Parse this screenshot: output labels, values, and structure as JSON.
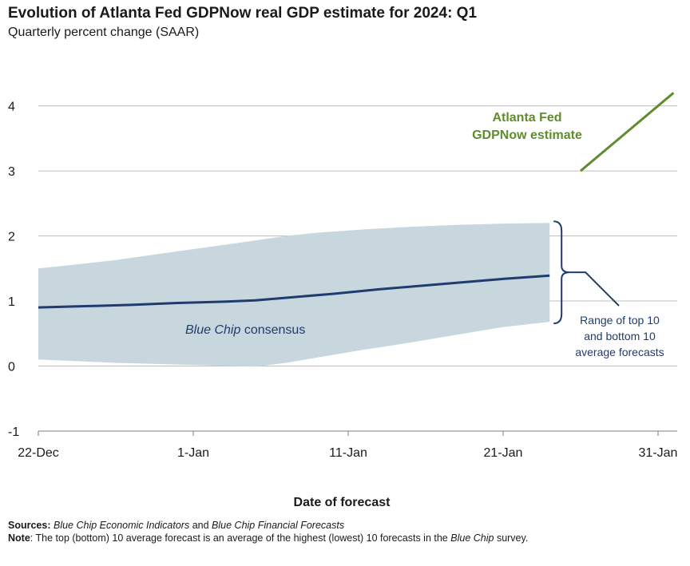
{
  "title": "Evolution of Atlanta Fed GDPNow real GDP estimate for 2024: Q1",
  "subtitle": "Quarterly percent change (SAAR)",
  "sources": {
    "label": "Sources:",
    "italic1": "Blue Chip Economic Indicators",
    "mid": "and",
    "italic2": "Blue Chip Financial Forecasts"
  },
  "note": {
    "label": "Note",
    "text1": ": The top (bottom) 10 average forecast is an average of the highest (lowest) 10 forecasts in the",
    "italic": "Blue Chip",
    "text2": "survey."
  },
  "chart_data": {
    "type": "area",
    "xlabel": "Date of forecast",
    "ylabel": "",
    "ylim": [
      -1,
      4.4
    ],
    "yticks": [
      "-1",
      "0",
      "1",
      "2",
      "3",
      "4"
    ],
    "xticks": [
      "22-Dec",
      "1-Jan",
      "11-Jan",
      "21-Jan",
      "31-Jan"
    ],
    "xtick_days": [
      0,
      10,
      20,
      30,
      40
    ],
    "xrange_days": [
      0,
      42
    ],
    "grid": true,
    "colors": {
      "band": "#c8d6de",
      "consensus": "#1f3b6f",
      "gdpnow": "#5f8c2d",
      "grid": "#bfbfbf",
      "bracket": "#1f3b6f"
    },
    "band": {
      "name": "Range of top 10 and bottom 10 average forecasts",
      "x": [
        0,
        2,
        5,
        8,
        11,
        14,
        16,
        18,
        21,
        24,
        27,
        30,
        33
      ],
      "upper": [
        1.5,
        1.55,
        1.63,
        1.73,
        1.83,
        1.93,
        2.0,
        2.05,
        2.1,
        2.14,
        2.17,
        2.19,
        2.2
      ],
      "lower": [
        0.1,
        0.08,
        0.05,
        0.03,
        0.01,
        -0.01,
        0.05,
        0.13,
        0.25,
        0.36,
        0.48,
        0.6,
        0.68
      ]
    },
    "consensus": {
      "name": "Blue Chip consensus",
      "x": [
        0,
        3,
        6,
        9,
        12,
        14,
        16,
        19,
        22,
        25,
        28,
        30,
        33
      ],
      "y": [
        0.9,
        0.92,
        0.94,
        0.97,
        0.99,
        1.01,
        1.05,
        1.11,
        1.18,
        1.24,
        1.3,
        1.34,
        1.39
      ]
    },
    "gdpnow": {
      "name": "Atlanta Fed GDPNow estimate",
      "x": [
        35,
        41
      ],
      "y": [
        3.0,
        4.2
      ]
    },
    "labels": {
      "consensus_italic": "Blue Chip",
      "consensus_rest": "consensus",
      "gdpnow_line1": "Atlanta Fed",
      "gdpnow_line2": "GDPNow estimate",
      "range_line1": "Range of top 10",
      "range_line2": "and bottom 10",
      "range_line3": "average forecasts"
    }
  }
}
